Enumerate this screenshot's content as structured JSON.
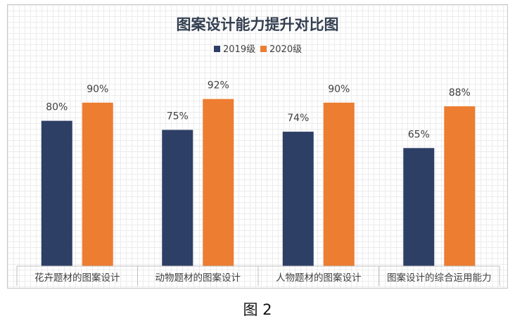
{
  "chart_data": {
    "type": "bar",
    "title": "图案设计能力提升对比图",
    "categories": [
      "花卉题材的图案设计",
      "动物题材的图案设计",
      "人物题材的图案设计",
      "图案设计的综合运用能力"
    ],
    "series": [
      {
        "name": "2019级",
        "values": [
          80,
          75,
          74,
          65
        ],
        "labels": [
          "80%",
          "75%",
          "74%",
          "65%"
        ],
        "color": "#2e3f66"
      },
      {
        "name": "2020级",
        "values": [
          90,
          92,
          90,
          88
        ],
        "labels": [
          "90%",
          "92%",
          "90%",
          "88%"
        ],
        "color": "#ed7d31"
      }
    ],
    "ylim": [
      0,
      100
    ],
    "grid": true,
    "legend_position": "top"
  },
  "caption": "图 2"
}
